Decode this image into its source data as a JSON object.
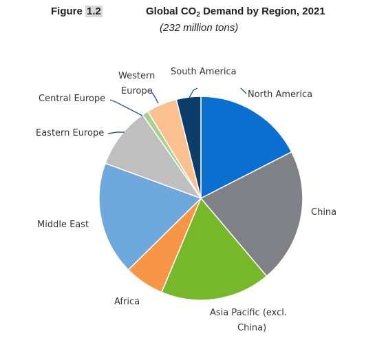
{
  "figure": {
    "prefix": "Figure ",
    "number": "1.2"
  },
  "chart_data": {
    "type": "pie",
    "title_main": "Global CO",
    "title_sub": "2",
    "title_rest": " Demand by Region, 2021",
    "subtitle": "(232 million tons)",
    "slices": [
      {
        "name": "North America",
        "value": 18.0,
        "color": "#0b6fd1",
        "label_lines": [
          "North America"
        ]
      },
      {
        "name": "China",
        "value": 22.0,
        "color": "#7f8186",
        "label_lines": [
          "China"
        ]
      },
      {
        "name": "Asia Pacific (excl. China)",
        "value": 18.0,
        "color": "#76b82a",
        "label_lines": [
          "Asia Pacific (excl.",
          "China)"
        ]
      },
      {
        "name": "Africa",
        "value": 6.5,
        "color": "#f79646",
        "label_lines": [
          "Africa"
        ]
      },
      {
        "name": "Middle East",
        "value": 18.5,
        "color": "#6ea8dc",
        "label_lines": [
          "Middle East"
        ]
      },
      {
        "name": "Eastern Europe",
        "value": 10.0,
        "color": "#bfbfbf",
        "label_lines": [
          "Eastern Europe"
        ]
      },
      {
        "name": "Central Europe",
        "value": 1.0,
        "color": "#a9d18e",
        "label_lines": [
          "Central Europe"
        ]
      },
      {
        "name": "Western Europe",
        "value": 5.0,
        "color": "#fac090",
        "label_lines": [
          "Western",
          "Europe"
        ]
      },
      {
        "name": "South America",
        "value": 4.0,
        "color": "#0d3d6b",
        "label_lines": [
          "South America"
        ]
      }
    ]
  }
}
